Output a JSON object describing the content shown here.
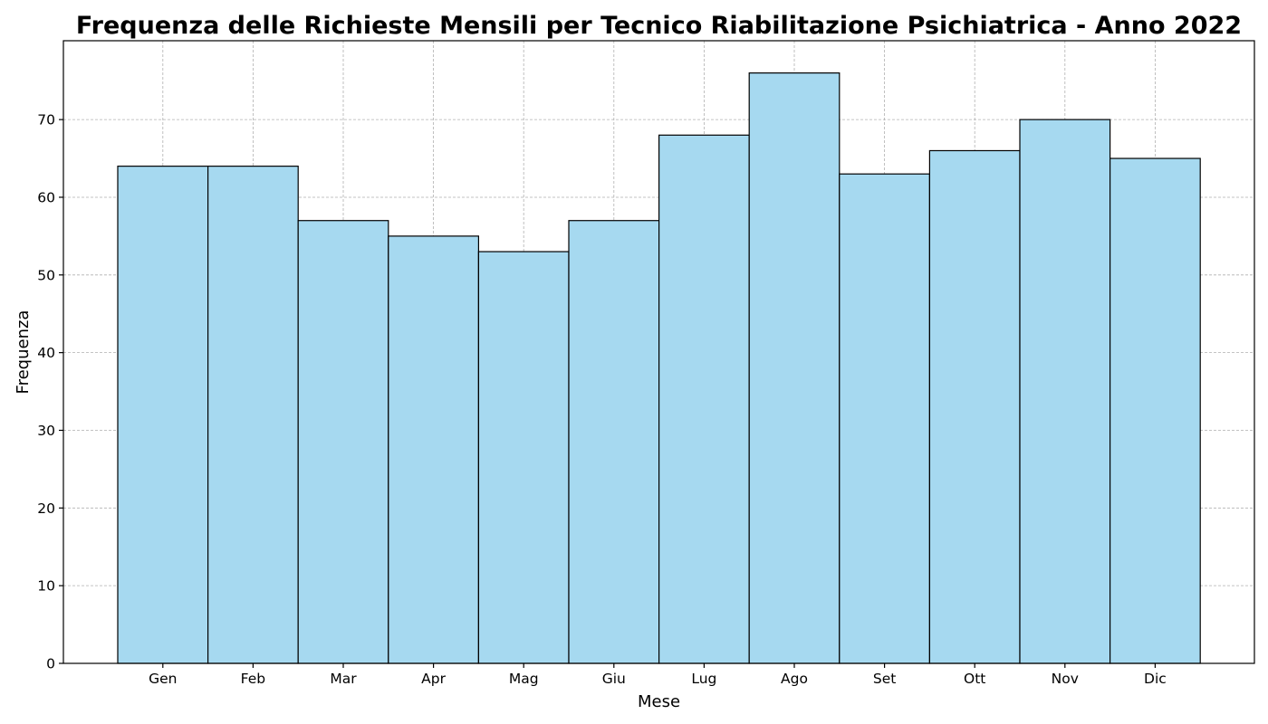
{
  "chart_data": {
    "type": "bar",
    "title": "Frequenza delle Richieste Mensili per Tecnico Riabilitazione Psichiatrica - Anno 2022",
    "xlabel": "Mese",
    "ylabel": "Frequenza",
    "categories": [
      "Gen",
      "Feb",
      "Mar",
      "Apr",
      "Mag",
      "Giu",
      "Lug",
      "Ago",
      "Set",
      "Ott",
      "Nov",
      "Dic"
    ],
    "values": [
      64,
      64,
      57,
      55,
      53,
      57,
      68,
      76,
      63,
      66,
      70,
      65
    ],
    "ylim": [
      0,
      80
    ],
    "yticks": [
      0,
      10,
      20,
      30,
      40,
      50,
      60,
      70
    ],
    "grid": true,
    "bar_color": "#a6d9f0",
    "edge_color": "#000000",
    "legend": "none"
  }
}
